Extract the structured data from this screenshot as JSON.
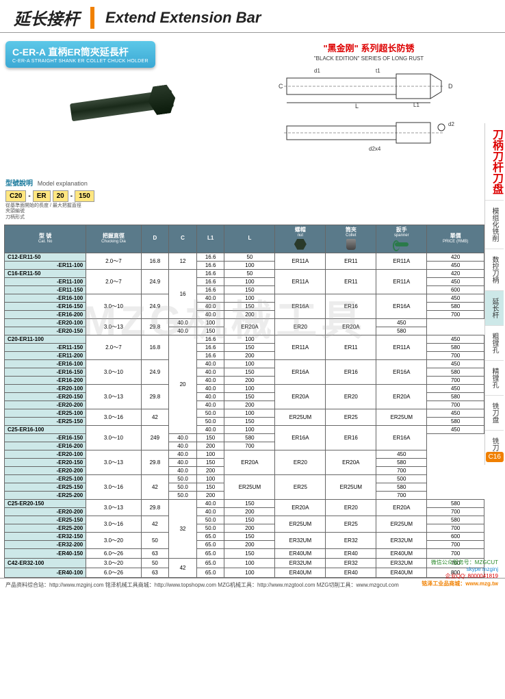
{
  "header": {
    "cn": "延长接杆",
    "en": "Extend Extension Bar"
  },
  "badge": {
    "cn": "C-ER-A 直柄ER筒夾延長杆",
    "en": "C-ER-A STRAIGHT SHANK ER COLLET CHUCK HOLDER"
  },
  "model_exp": {
    "label_cn": "型號說明",
    "label_en": "Model explanation",
    "parts": [
      "C20",
      "ER",
      "20",
      "150"
    ],
    "notes": [
      "刀柄形式",
      "夾頭編號",
      "從基準面開始的長度 / 最大把握直徑"
    ]
  },
  "series": {
    "cn": "\"黑金刚\" 系列超长防锈",
    "en": "\"BLACK EDITION\" SERIES OF LONG RUST"
  },
  "diagram_labels": {
    "d1": "d1",
    "t1": "t1",
    "C": "C",
    "D": "D",
    "L": "L",
    "L1": "L1",
    "d2": "d2",
    "d2x4": "d2x4"
  },
  "sidebar": {
    "title": "刀柄刀杆刀盘",
    "items": [
      "模组化铣削",
      "数控刀柄",
      "延长杆",
      "粗镗孔",
      "精镗孔",
      "铣刀盘",
      "铣刀杆"
    ],
    "active_index": 2,
    "tag": "C16"
  },
  "table": {
    "headers": [
      {
        "cn": "型 號",
        "en": "Cat. No"
      },
      {
        "cn": "把握直徑",
        "en": "Chucking Dia"
      },
      {
        "cn": "D",
        "en": ""
      },
      {
        "cn": "C",
        "en": ""
      },
      {
        "cn": "L1",
        "en": ""
      },
      {
        "cn": "L",
        "en": ""
      },
      {
        "cn": "螺帽",
        "en": "nut",
        "icon": "nut"
      },
      {
        "cn": "筒夾",
        "en": "Collet",
        "icon": "collet"
      },
      {
        "cn": "扳手",
        "en": "spanner",
        "icon": "spanner"
      },
      {
        "cn": "單價",
        "en": "PRICE (RMB)"
      }
    ],
    "groups": [
      {
        "chuck": "2.0～7",
        "D": "16.8",
        "C": "12",
        "nut": "ER11A",
        "collet": "ER11",
        "span": "ER11A",
        "rows": [
          {
            "cat": "C12-ER11-50",
            "L1": "16.6",
            "L": "50",
            "price": "420"
          },
          {
            "cat": "-ER11-100",
            "L1": "16.6",
            "L": "100",
            "price": "450"
          }
        ]
      },
      {
        "chuck": "2.0～7",
        "D": "24.9",
        "C": "16",
        "nut": "ER11A",
        "collet": "ER11",
        "span": "ER11A",
        "c_span": 6,
        "rows": [
          {
            "cat": "C16-ER11-50",
            "L1": "16.6",
            "L": "50",
            "price": "420",
            "own_nut": true
          },
          {
            "cat": "-ER11-100",
            "L1": "16.6",
            "L": "100",
            "price": "450"
          },
          {
            "cat": "-ER11-150",
            "L1": "16.6",
            "L": "150",
            "price": "600"
          }
        ],
        "chuck_span": 3,
        "d_span": 3
      },
      {
        "chuck": "3.0～10",
        "D": "24.9",
        "C": "",
        "nut": "ER16A",
        "collet": "ER16",
        "span": "ER16A",
        "rows": [
          {
            "cat": "-ER16-100",
            "L1": "40.0",
            "L": "100",
            "price": "450"
          },
          {
            "cat": "-ER16-150",
            "L1": "40.0",
            "L": "150",
            "price": "580"
          },
          {
            "cat": "-ER16-200",
            "L1": "40.0",
            "L": "200",
            "price": "700"
          }
        ]
      },
      {
        "chuck": "3.0～13",
        "D": "29.8",
        "C": "",
        "nut": "ER20A",
        "collet": "ER20",
        "span": "ER20A",
        "rows": [
          {
            "cat": "-ER20-100",
            "L1": "40.0",
            "L": "100",
            "price": "450"
          },
          {
            "cat": "-ER20-150",
            "L1": "40.0",
            "L": "150",
            "price": "580"
          }
        ]
      },
      {
        "chuck": "2.0～7",
        "D": "16.8",
        "C": "20",
        "nut": "ER11A",
        "collet": "ER11",
        "span": "ER11A",
        "c_span": 12,
        "rows": [
          {
            "cat": "C20-ER11-100",
            "L1": "16.6",
            "L": "100",
            "price": "450"
          },
          {
            "cat": "-ER11-150",
            "L1": "16.6",
            "L": "150",
            "price": "580"
          },
          {
            "cat": "-ER11-200",
            "L1": "16.6",
            "L": "200",
            "price": "700"
          }
        ]
      },
      {
        "chuck": "3.0～10",
        "D": "24.9",
        "C": "",
        "nut": "ER16A",
        "collet": "ER16",
        "span": "ER16A",
        "rows": [
          {
            "cat": "-ER16-100",
            "L1": "40.0",
            "L": "100",
            "price": "450"
          },
          {
            "cat": "-ER16-150",
            "L1": "40.0",
            "L": "150",
            "price": "580"
          },
          {
            "cat": "-ER16-200",
            "L1": "40.0",
            "L": "200",
            "price": "700"
          }
        ]
      },
      {
        "chuck": "3.0～13",
        "D": "29.8",
        "C": "",
        "nut": "ER20A",
        "collet": "ER20",
        "span": "ER20A",
        "rows": [
          {
            "cat": "-ER20-100",
            "L1": "40.0",
            "L": "100",
            "price": "450"
          },
          {
            "cat": "-ER20-150",
            "L1": "40.0",
            "L": "150",
            "price": "580"
          },
          {
            "cat": "-ER20-200",
            "L1": "40.0",
            "L": "200",
            "price": "700"
          }
        ]
      },
      {
        "chuck": "3.0～16",
        "D": "42",
        "C": "",
        "nut": "ER25UM",
        "collet": "ER25",
        "span": "ER25UM",
        "rows": [
          {
            "cat": "-ER25-100",
            "L1": "50.0",
            "L": "100",
            "price": "450"
          },
          {
            "cat": "-ER25-150",
            "L1": "50.0",
            "L": "150",
            "price": "580"
          }
        ]
      },
      {
        "chuck": "3.0～10",
        "D": "249",
        "C": "25",
        "nut": "ER16A",
        "collet": "ER16",
        "span": "ER16A",
        "c_span": 9,
        "rows": [
          {
            "cat": "C25-ER16-100",
            "L1": "40.0",
            "L": "100",
            "price": "450"
          },
          {
            "cat": "-ER16-150",
            "L1": "40.0",
            "L": "150",
            "price": "580"
          },
          {
            "cat": "-ER16-200",
            "L1": "40.0",
            "L": "200",
            "price": "700"
          }
        ]
      },
      {
        "chuck": "3.0～13",
        "D": "29.8",
        "C": "",
        "nut": "ER20A",
        "collet": "ER20",
        "span": "ER20A",
        "rows": [
          {
            "cat": "-ER20-100",
            "L1": "40.0",
            "L": "100",
            "price": "450"
          },
          {
            "cat": "-ER20-150",
            "L1": "40.0",
            "L": "150",
            "price": "580"
          },
          {
            "cat": "-ER20-200",
            "L1": "40.0",
            "L": "200",
            "price": "700"
          }
        ]
      },
      {
        "chuck": "3.0～16",
        "D": "42",
        "C": "",
        "nut": "ER25UM",
        "collet": "ER25",
        "span": "ER25UM",
        "rows": [
          {
            "cat": "-ER25-100",
            "L1": "50.0",
            "L": "100",
            "price": "500"
          },
          {
            "cat": "-ER25-150",
            "L1": "50.0",
            "L": "150",
            "price": "580"
          },
          {
            "cat": "-ER25-200",
            "L1": "50.0",
            "L": "200",
            "price": "700"
          }
        ]
      },
      {
        "chuck": "3.0～13",
        "D": "29.8",
        "C": "32",
        "nut": "ER20A",
        "collet": "ER20",
        "span": "ER20A",
        "c_span": 7,
        "rows": [
          {
            "cat": "C25-ER20-150",
            "L1": "40.0",
            "L": "150",
            "price": "580"
          },
          {
            "cat": "-ER20-200",
            "L1": "40.0",
            "L": "200",
            "price": "700"
          }
        ]
      },
      {
        "chuck": "3.0～16",
        "D": "42",
        "C": "",
        "nut": "ER25UM",
        "collet": "ER25",
        "span": "ER25UM",
        "rows": [
          {
            "cat": "-ER25-150",
            "L1": "50.0",
            "L": "150",
            "price": "580"
          },
          {
            "cat": "-ER25-200",
            "L1": "50.0",
            "L": "200",
            "price": "700"
          }
        ]
      },
      {
        "chuck": "3.0～20",
        "D": "50",
        "C": "",
        "nut": "ER32UM",
        "collet": "ER32",
        "span": "ER32UM",
        "rows": [
          {
            "cat": "-ER32-150",
            "L1": "65.0",
            "L": "150",
            "price": "600"
          },
          {
            "cat": "-ER32-200",
            "L1": "65.0",
            "L": "200",
            "price": "700"
          }
        ]
      },
      {
        "chuck": "6.0～26",
        "D": "63",
        "C": "",
        "nut": "ER40UM",
        "collet": "ER40",
        "span": "ER40UM",
        "rows": [
          {
            "cat": "-ER40-150",
            "L1": "65.0",
            "L": "150",
            "price": "700"
          }
        ]
      },
      {
        "chuck": "3.0～20",
        "D": "50",
        "C": "42",
        "nut": "ER32UM",
        "collet": "ER32",
        "span": "ER32UM",
        "c_span": 2,
        "rows": [
          {
            "cat": "C42-ER32-100",
            "L1": "65.0",
            "L": "100",
            "price": "700"
          }
        ]
      },
      {
        "chuck": "6.0～26",
        "D": "63",
        "C": "",
        "nut": "ER40UM",
        "collet": "ER40",
        "span": "ER40UM",
        "rows": [
          {
            "cat": "-ER40-100",
            "L1": "65.0",
            "L": "100",
            "price": "800"
          }
        ]
      }
    ]
  },
  "watermark": "MZG机械工具",
  "footer": {
    "text": "产品资料综合站：http://www.mzginj.com  铭泽机械工具商城：http://www.topshopw.com  MZG机械工具：http://www.mzgtool.com  MZG切削工具：www.mzgcut.com",
    "wechat": "微信公众服务号：MZGCUT",
    "skype": "skype mzginj",
    "qq": "企业QQ: 8000041819",
    "shop": "铭泽工业品商城：www.mzg.tw"
  }
}
